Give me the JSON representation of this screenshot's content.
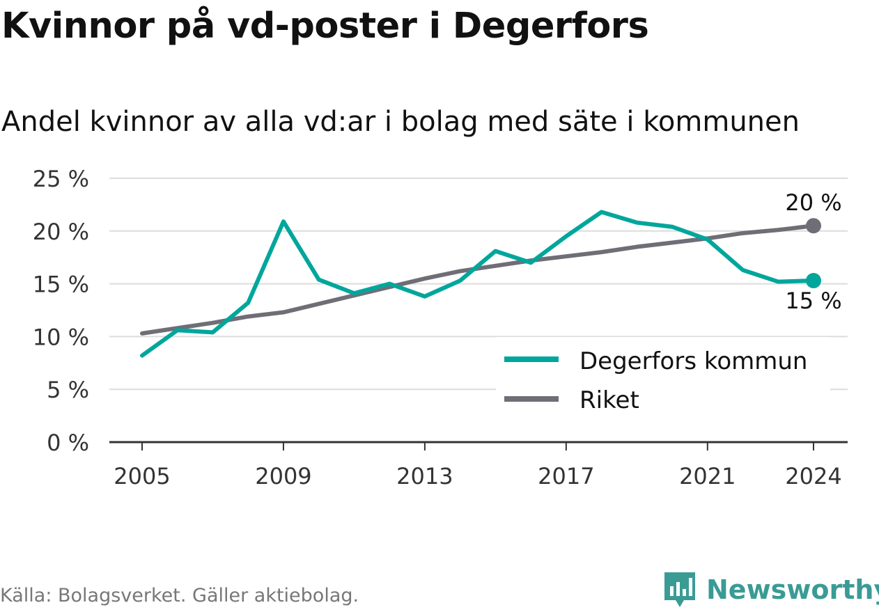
{
  "title": "Kvinnor på vd-poster i Degerfors",
  "subtitle": "Andel kvinnor av alla vd:ar i bolag med säte i kommunen",
  "source": "Källa: Bolagsverket. Gäller aktiebolag.",
  "brand": "Newsworthy",
  "chart_data": {
    "type": "line",
    "x": [
      2005,
      2006,
      2007,
      2008,
      2009,
      2010,
      2011,
      2012,
      2013,
      2014,
      2015,
      2016,
      2017,
      2018,
      2019,
      2020,
      2021,
      2022,
      2023,
      2024
    ],
    "series": [
      {
        "name": "Degerfors kommun",
        "color": "#00a69c",
        "values": [
          8.2,
          10.6,
          10.4,
          13.2,
          20.9,
          15.4,
          14.1,
          15.0,
          13.8,
          15.3,
          18.1,
          17.0,
          19.5,
          21.8,
          20.8,
          20.4,
          19.2,
          16.3,
          15.2,
          15.3
        ],
        "end_label": "15 %"
      },
      {
        "name": "Riket",
        "color": "#6f6e77",
        "values": [
          10.3,
          10.8,
          11.3,
          11.9,
          12.3,
          13.1,
          13.9,
          14.7,
          15.5,
          16.2,
          16.7,
          17.2,
          17.6,
          18.0,
          18.5,
          18.9,
          19.3,
          19.8,
          20.1,
          20.5
        ],
        "end_label": "20 %"
      }
    ],
    "xticks": [
      "2005",
      "2009",
      "2013",
      "2017",
      "2021",
      "2024"
    ],
    "yticks": [
      "0 %",
      "5 %",
      "10 %",
      "15 %",
      "20 %",
      "25 %"
    ],
    "ylim": [
      0,
      25
    ],
    "grid": true,
    "legend_position": "bottom-right"
  }
}
